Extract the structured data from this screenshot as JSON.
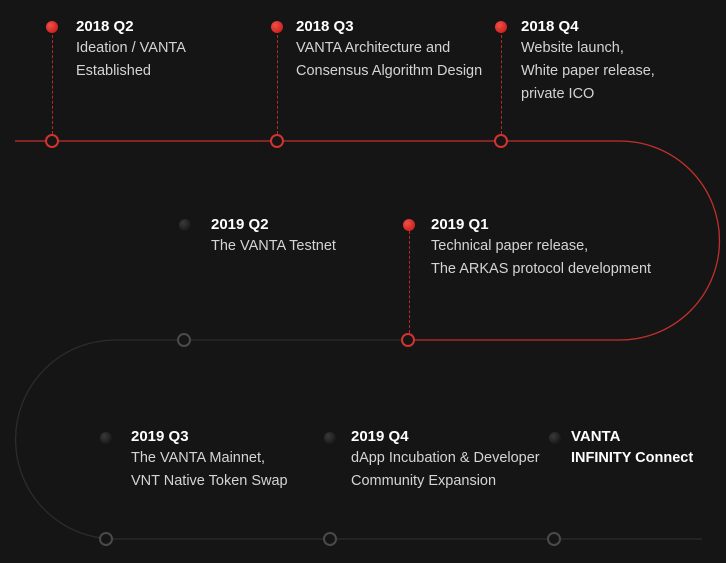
{
  "milestones": [
    {
      "period": "2018 Q2",
      "lines": [
        "Ideation / VANTA",
        "Established"
      ],
      "status": "done"
    },
    {
      "period": "2018 Q3",
      "lines": [
        "VANTA Architecture and",
        "Consensus Algorithm Design"
      ],
      "status": "done"
    },
    {
      "period": "2018 Q4",
      "lines": [
        "Website launch,",
        "White paper release,",
        "private ICO"
      ],
      "status": "done"
    },
    {
      "period": "2019 Q1",
      "lines": [
        "Technical paper release,",
        "The ARKAS protocol development"
      ],
      "status": "done"
    },
    {
      "period": "2019 Q2",
      "lines": [
        "The VANTA Testnet"
      ],
      "status": "upcoming"
    },
    {
      "period": "2019 Q3",
      "lines": [
        "The VANTA Mainnet,",
        "VNT Native Token Swap"
      ],
      "status": "upcoming"
    },
    {
      "period": "2019 Q4",
      "lines": [
        "dApp Incubation & Developer",
        "Community Expansion"
      ],
      "status": "upcoming"
    },
    {
      "period": "VANTA",
      "lines": [
        "INFINITY Connect"
      ],
      "status": "upcoming",
      "bold_lines": true
    }
  ],
  "colors": {
    "background": "#151515",
    "done": "#d0342f",
    "upcoming": "#4a4a4a",
    "title": "#ffffff",
    "text": "#d4d4d4"
  }
}
